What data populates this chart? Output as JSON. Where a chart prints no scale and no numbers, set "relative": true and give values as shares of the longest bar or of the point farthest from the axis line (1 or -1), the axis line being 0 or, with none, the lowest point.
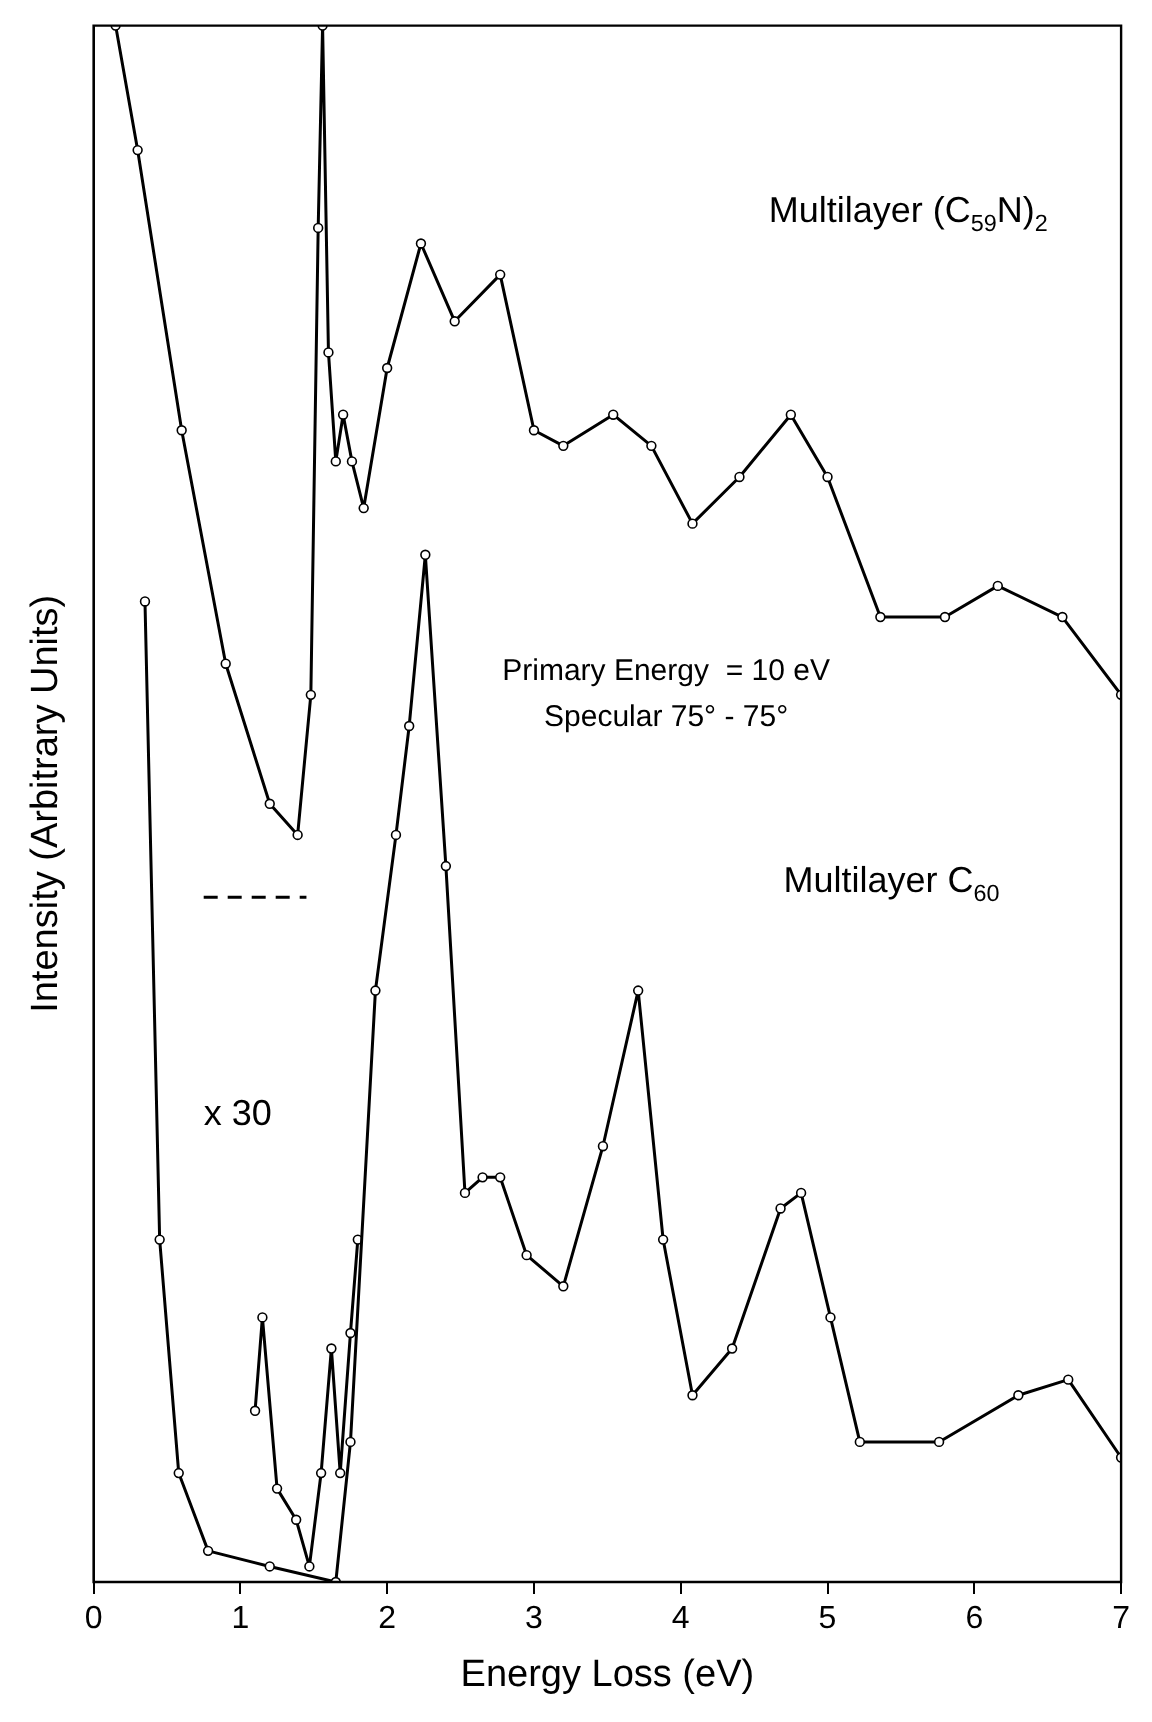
{
  "chart_data": {
    "type": "line",
    "xlabel": "Energy Loss (eV)",
    "ylabel": "Intensity (Arbitrary Units)",
    "relative": true,
    "xlim": [
      0,
      7
    ],
    "xticks": [
      0,
      1,
      2,
      3,
      4,
      5,
      6,
      7
    ],
    "legend": false,
    "grid": false,
    "series": [
      {
        "color": "#000000",
        "marker": "circle",
        "x": [
          0.15,
          0.3,
          0.6,
          0.9,
          1.2,
          1.39,
          1.48,
          1.53,
          1.56,
          1.6,
          1.65,
          1.7,
          1.76,
          1.84,
          2.0,
          2.23,
          2.46,
          2.77,
          3.0,
          3.2,
          3.54,
          3.8,
          4.08,
          4.4,
          4.75,
          5.0,
          5.36,
          5.8,
          6.16,
          6.6,
          7.0
        ],
        "values": [
          1.0,
          0.92,
          0.74,
          0.59,
          0.5,
          0.48,
          0.57,
          0.87,
          1.0,
          0.79,
          0.72,
          0.75,
          0.72,
          0.69,
          0.78,
          0.86,
          0.81,
          0.84,
          0.74,
          0.73,
          0.75,
          0.73,
          0.68,
          0.71,
          0.75,
          0.71,
          0.62,
          0.62,
          0.64,
          0.62,
          0.57
        ]
      },
      {
        "color": "#000000",
        "marker": "circle",
        "x": [
          0.35,
          0.45,
          0.58,
          0.78,
          1.2,
          1.65,
          1.75,
          1.92,
          2.06,
          2.15,
          2.26,
          2.4,
          2.53,
          2.65,
          2.77,
          2.95,
          3.2,
          3.47,
          3.71,
          3.88,
          4.08,
          4.35,
          4.68,
          4.82,
          5.02,
          5.22,
          5.76,
          6.3,
          6.64,
          7.0
        ],
        "values": [
          0.63,
          0.22,
          0.07,
          0.02,
          0.01,
          0.0,
          0.09,
          0.38,
          0.48,
          0.55,
          0.66,
          0.46,
          0.25,
          0.26,
          0.26,
          0.21,
          0.19,
          0.28,
          0.38,
          0.22,
          0.12,
          0.15,
          0.24,
          0.25,
          0.17,
          0.09,
          0.09,
          0.12,
          0.13,
          0.08
        ]
      },
      {
        "color": "#000000",
        "marker": "circle",
        "x": [
          1.1,
          1.15,
          1.25,
          1.38,
          1.47,
          1.55,
          1.62,
          1.68,
          1.75,
          1.8
        ],
        "values": [
          0.11,
          0.17,
          0.06,
          0.04,
          0.01,
          0.07,
          0.15,
          0.07,
          0.16,
          0.22
        ]
      },
      {
        "color": "#000000",
        "marker": "none",
        "line_style": "dashed",
        "x": [
          0.75,
          1.45
        ],
        "values": [
          0.44,
          0.44
        ]
      }
    ],
    "annotations": [
      "Multilayer (C$_{59}$N)$_{2}$",
      "Primary Energy  = 10 eV",
      "Specular 75° - 75°",
      "Multilayer C$_{60}$",
      "x 30"
    ]
  }
}
